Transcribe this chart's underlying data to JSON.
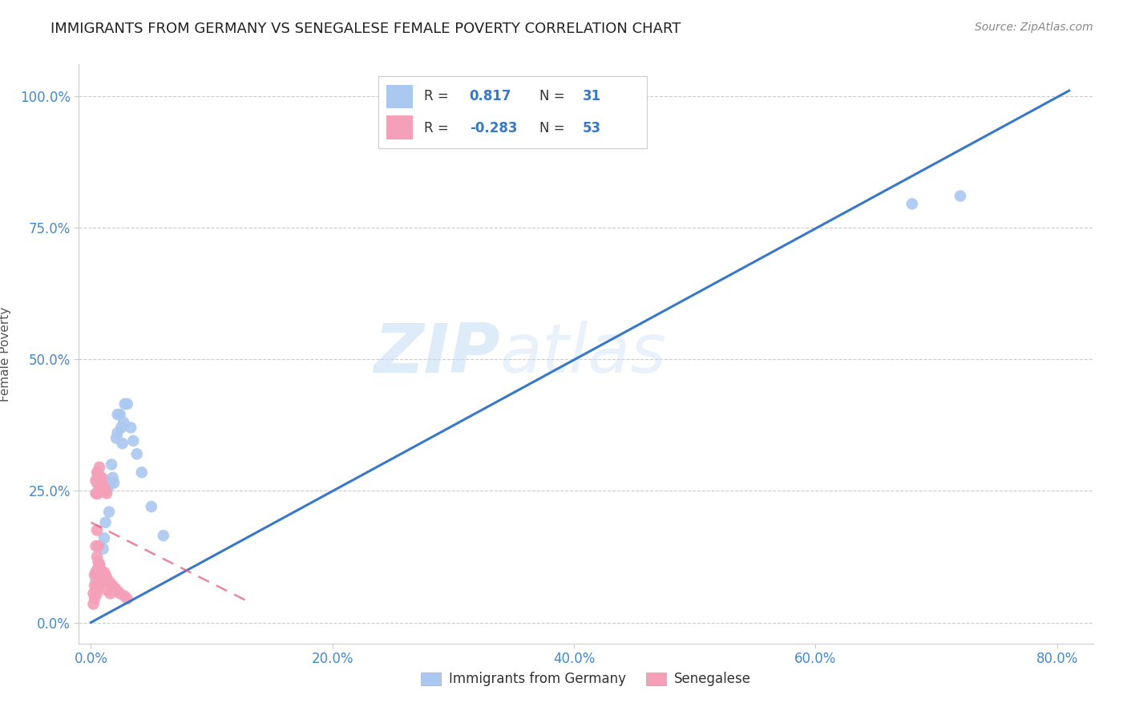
{
  "title": "IMMIGRANTS FROM GERMANY VS SENEGALESE FEMALE POVERTY CORRELATION CHART",
  "source": "Source: ZipAtlas.com",
  "ylabel": "Female Poverty",
  "xlabel_ticks": [
    "0.0%",
    "20.0%",
    "40.0%",
    "60.0%",
    "80.0%"
  ],
  "xlabel_tick_vals": [
    0.0,
    0.2,
    0.4,
    0.6,
    0.8
  ],
  "ylabel_ticks": [
    "0.0%",
    "25.0%",
    "50.0%",
    "75.0%",
    "100.0%"
  ],
  "ylabel_tick_vals": [
    0.0,
    0.25,
    0.5,
    0.75,
    1.0
  ],
  "xlim": [
    -0.01,
    0.83
  ],
  "ylim": [
    -0.04,
    1.06
  ],
  "blue_color": "#aac8f0",
  "pink_color": "#f4a0b8",
  "blue_line_color": "#3878c8",
  "pink_line_color": "#e06080",
  "pink_line_dash": [
    6,
    4
  ],
  "watermark_zip": "ZIP",
  "watermark_atlas": "atlas",
  "legend_label_blue": "Immigrants from Germany",
  "legend_label_pink": "Senegalese",
  "blue_R": "0.817",
  "blue_N": "31",
  "pink_R": "-0.283",
  "pink_N": "53",
  "blue_dots": [
    [
      0.004,
      0.08
    ],
    [
      0.006,
      0.1
    ],
    [
      0.007,
      0.11
    ],
    [
      0.009,
      0.085
    ],
    [
      0.01,
      0.14
    ],
    [
      0.011,
      0.16
    ],
    [
      0.012,
      0.19
    ],
    [
      0.013,
      0.27
    ],
    [
      0.014,
      0.255
    ],
    [
      0.015,
      0.21
    ],
    [
      0.016,
      0.265
    ],
    [
      0.017,
      0.3
    ],
    [
      0.018,
      0.275
    ],
    [
      0.019,
      0.265
    ],
    [
      0.021,
      0.35
    ],
    [
      0.022,
      0.36
    ],
    [
      0.022,
      0.395
    ],
    [
      0.024,
      0.395
    ],
    [
      0.025,
      0.37
    ],
    [
      0.026,
      0.34
    ],
    [
      0.027,
      0.38
    ],
    [
      0.028,
      0.415
    ],
    [
      0.03,
      0.415
    ],
    [
      0.033,
      0.37
    ],
    [
      0.035,
      0.345
    ],
    [
      0.038,
      0.32
    ],
    [
      0.042,
      0.285
    ],
    [
      0.05,
      0.22
    ],
    [
      0.06,
      0.165
    ],
    [
      0.68,
      0.795
    ],
    [
      0.72,
      0.81
    ]
  ],
  "pink_dots": [
    [
      0.002,
      0.035
    ],
    [
      0.002,
      0.055
    ],
    [
      0.003,
      0.045
    ],
    [
      0.003,
      0.07
    ],
    [
      0.003,
      0.09
    ],
    [
      0.004,
      0.06
    ],
    [
      0.004,
      0.095
    ],
    [
      0.004,
      0.145
    ],
    [
      0.004,
      0.245
    ],
    [
      0.004,
      0.27
    ],
    [
      0.005,
      0.055
    ],
    [
      0.005,
      0.075
    ],
    [
      0.005,
      0.1
    ],
    [
      0.005,
      0.125
    ],
    [
      0.005,
      0.175
    ],
    [
      0.005,
      0.245
    ],
    [
      0.005,
      0.265
    ],
    [
      0.005,
      0.285
    ],
    [
      0.006,
      0.065
    ],
    [
      0.006,
      0.09
    ],
    [
      0.006,
      0.115
    ],
    [
      0.006,
      0.145
    ],
    [
      0.006,
      0.245
    ],
    [
      0.006,
      0.265
    ],
    [
      0.006,
      0.285
    ],
    [
      0.007,
      0.07
    ],
    [
      0.007,
      0.11
    ],
    [
      0.007,
      0.255
    ],
    [
      0.007,
      0.275
    ],
    [
      0.007,
      0.295
    ],
    [
      0.008,
      0.075
    ],
    [
      0.008,
      0.1
    ],
    [
      0.008,
      0.265
    ],
    [
      0.009,
      0.08
    ],
    [
      0.009,
      0.275
    ],
    [
      0.01,
      0.085
    ],
    [
      0.01,
      0.26
    ],
    [
      0.011,
      0.095
    ],
    [
      0.011,
      0.255
    ],
    [
      0.012,
      0.09
    ],
    [
      0.012,
      0.25
    ],
    [
      0.013,
      0.085
    ],
    [
      0.013,
      0.245
    ],
    [
      0.014,
      0.08
    ],
    [
      0.014,
      0.06
    ],
    [
      0.016,
      0.075
    ],
    [
      0.016,
      0.055
    ],
    [
      0.018,
      0.07
    ],
    [
      0.02,
      0.065
    ],
    [
      0.022,
      0.06
    ],
    [
      0.024,
      0.055
    ],
    [
      0.028,
      0.05
    ],
    [
      0.03,
      0.045
    ]
  ],
  "blue_line_x": [
    0.0,
    0.81
  ],
  "blue_line_y": [
    0.0,
    1.01
  ],
  "pink_line_x": [
    0.0,
    0.13
  ],
  "pink_line_y": [
    0.19,
    0.04
  ]
}
